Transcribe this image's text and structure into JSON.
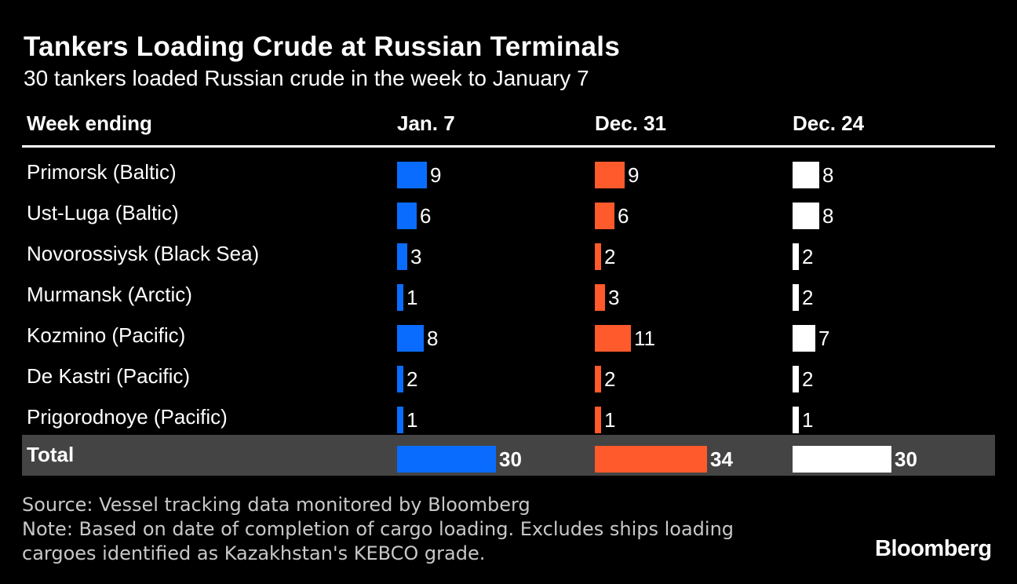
{
  "header": {
    "title": "Tankers Loading Crude at Russian Terminals",
    "subtitle": "30 tankers loaded Russian crude in the week to January 7"
  },
  "chart_data": {
    "type": "table",
    "title": "Tankers Loading Crude at Russian Terminals",
    "subtitle": "30 tankers loaded Russian crude in the week to January 7",
    "row_header": "Week ending",
    "columns": [
      "Jan. 7",
      "Dec. 31",
      "Dec. 24"
    ],
    "column_colors": [
      "#0a6cff",
      "#ff5a2b",
      "#ffffff"
    ],
    "rows": [
      {
        "label": "Primorsk (Baltic)",
        "values": [
          9,
          9,
          8
        ]
      },
      {
        "label": "Ust-Luga (Baltic)",
        "values": [
          6,
          6,
          8
        ]
      },
      {
        "label": "Novorossiysk (Black Sea)",
        "values": [
          3,
          2,
          2
        ]
      },
      {
        "label": "Murmansk (Arctic)",
        "values": [
          1,
          3,
          2
        ]
      },
      {
        "label": "Kozmino (Pacific)",
        "values": [
          8,
          11,
          7
        ]
      },
      {
        "label": "De Kastri (Pacific)",
        "values": [
          2,
          2,
          2
        ]
      },
      {
        "label": "Prigorodnoye (Pacific)",
        "values": [
          1,
          1,
          1
        ]
      }
    ],
    "total": {
      "label": "Total",
      "values": [
        30,
        34,
        30
      ]
    }
  },
  "footer": {
    "source": "Source: Vessel tracking data monitored by Bloomberg",
    "note_line1": "Note: Based on date of completion of cargo loading. Excludes ships loading",
    "note_line2": "cargoes identified as Kazakhstan's KEBCO grade."
  },
  "brand": {
    "logo": "Bloomberg"
  }
}
